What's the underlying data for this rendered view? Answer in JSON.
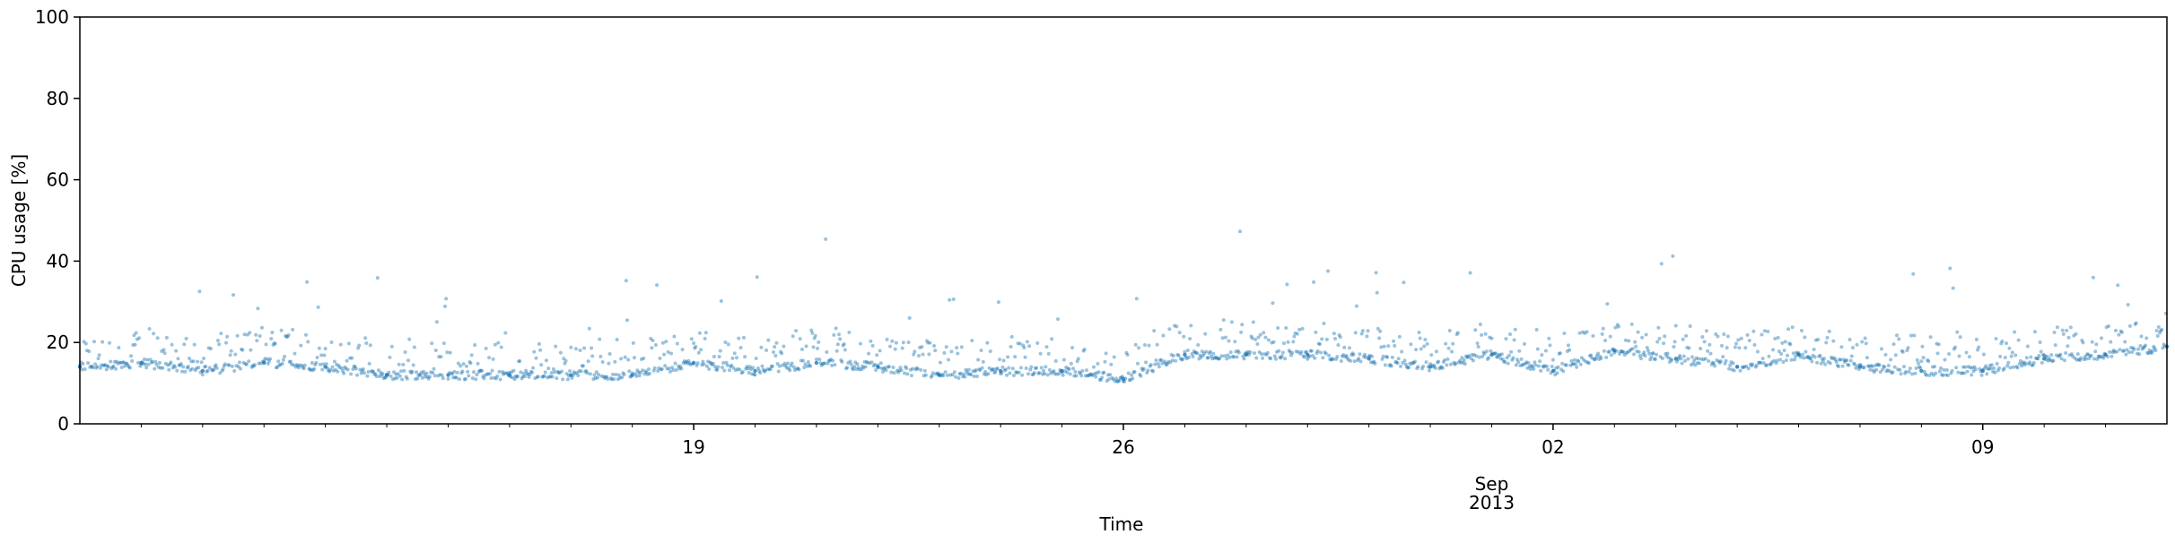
{
  "chart_data": {
    "type": "scatter",
    "title": "",
    "xlabel": "Time",
    "ylabel": "CPU usage [%]",
    "ylim": [
      0,
      100
    ],
    "xlim": [
      "2013-08-09",
      "2013-09-12"
    ],
    "yticks": [
      0,
      20,
      40,
      60,
      80,
      100
    ],
    "xticks_major": [
      {
        "date": "2013-08-19",
        "label": "19"
      },
      {
        "date": "2013-08-26",
        "label": "26"
      },
      {
        "date": "2013-09-02",
        "label": "02"
      },
      {
        "date": "2013-09-09",
        "label": "09"
      }
    ],
    "x_month_label": {
      "date": "2013-09-01",
      "line1": "Sep",
      "line2": "2013"
    },
    "grid": false,
    "legend": "none",
    "color": "#1f77b4",
    "series": [
      {
        "x": [
          "2013-08-09",
          "2013-08-10",
          "2013-08-11",
          "2013-08-12",
          "2013-08-13",
          "2013-08-14",
          "2013-08-15",
          "2013-08-16",
          "2013-08-17",
          "2013-08-18",
          "2013-08-19",
          "2013-08-20",
          "2013-08-21",
          "2013-08-22",
          "2013-08-23",
          "2013-08-24",
          "2013-08-25",
          "2013-08-26",
          "2013-08-27",
          "2013-08-28",
          "2013-08-29",
          "2013-08-30",
          "2013-08-31",
          "2013-09-01",
          "2013-09-02",
          "2013-09-03",
          "2013-09-04",
          "2013-09-05",
          "2013-09-06",
          "2013-09-07",
          "2013-09-08",
          "2013-09-09",
          "2013-09-10",
          "2013-09-11",
          "2013-09-12"
        ],
        "y": [
          14,
          15,
          13,
          15,
          14,
          12,
          12,
          12,
          12,
          12,
          15,
          13,
          15,
          14,
          12,
          13,
          13,
          11,
          17,
          17,
          17,
          16,
          14,
          17,
          13,
          18,
          16,
          14,
          17,
          14,
          13,
          13,
          16,
          17,
          19
        ]
      }
    ]
  }
}
